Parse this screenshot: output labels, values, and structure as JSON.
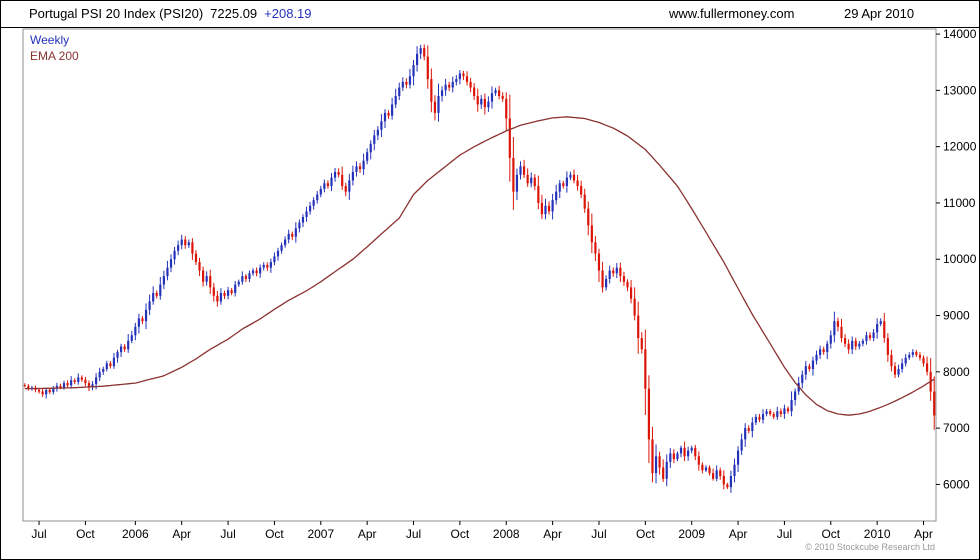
{
  "header": {
    "instrument": "Portugal PSI 20 Index (PSI20)",
    "price": "7225.09",
    "change": "+208.19",
    "website": "www.fullermoney.com",
    "date": "29 Apr 2010"
  },
  "legend": {
    "timeframe": "Weekly",
    "overlay": "EMA 200"
  },
  "footer": {
    "copyright": "© 2010 Stockcube Research Ltd"
  },
  "chart_data": {
    "type": "candlestick",
    "title": "Portugal PSI 20 Index (PSI20)",
    "timeframe": "Weekly",
    "overlay": "EMA 200",
    "last_price": 7225.09,
    "change": 208.19,
    "as_of_date": "29 Apr 2010",
    "grid": false,
    "legend_position": "top-left",
    "y_axis": {
      "side": "right",
      "ticks": [
        6000,
        7000,
        8000,
        9000,
        10000,
        11000,
        12000,
        13000,
        14000
      ],
      "range": [
        5350,
        14090
      ]
    },
    "x_axis": {
      "ticks": [
        {
          "label": "Jul",
          "week": 4
        },
        {
          "label": "Oct",
          "week": 17
        },
        {
          "label": "2006",
          "week": 31
        },
        {
          "label": "Apr",
          "week": 44
        },
        {
          "label": "Jul",
          "week": 57
        },
        {
          "label": "Oct",
          "week": 70
        },
        {
          "label": "2007",
          "week": 83
        },
        {
          "label": "Apr",
          "week": 96
        },
        {
          "label": "Jul",
          "week": 109
        },
        {
          "label": "Oct",
          "week": 122
        },
        {
          "label": "2008",
          "week": 135
        },
        {
          "label": "Apr",
          "week": 148
        },
        {
          "label": "Jul",
          "week": 161
        },
        {
          "label": "Oct",
          "week": 174
        },
        {
          "label": "2009",
          "week": 187
        },
        {
          "label": "Apr",
          "week": 200
        },
        {
          "label": "Jul",
          "week": 213
        },
        {
          "label": "Oct",
          "week": 226
        },
        {
          "label": "2010",
          "week": 239
        },
        {
          "label": "Apr",
          "week": 252
        }
      ]
    },
    "colors": {
      "up": "#2431b9",
      "down": "#dc1407",
      "ema": "#8a3331",
      "axis_text": "#000000",
      "frame": "#909090",
      "copyright": "#999999"
    },
    "series": {
      "weekly_closes": [
        7750,
        7700,
        7720,
        7680,
        7650,
        7600,
        7680,
        7640,
        7700,
        7750,
        7720,
        7800,
        7760,
        7850,
        7820,
        7900,
        7860,
        7800,
        7720,
        7780,
        7900,
        8000,
        8050,
        8150,
        8100,
        8250,
        8350,
        8450,
        8400,
        8550,
        8650,
        8800,
        8950,
        8900,
        9100,
        9250,
        9400,
        9350,
        9550,
        9700,
        9850,
        10000,
        10150,
        10250,
        10350,
        10250,
        10300,
        10100,
        9950,
        9800,
        9600,
        9700,
        9500,
        9350,
        9250,
        9400,
        9350,
        9450,
        9400,
        9550,
        9600,
        9700,
        9650,
        9750,
        9800,
        9750,
        9850,
        9900,
        9850,
        9950,
        10050,
        10150,
        10250,
        10350,
        10450,
        10400,
        10550,
        10650,
        10750,
        10850,
        10950,
        11050,
        11150,
        11250,
        11350,
        11300,
        11450,
        11550,
        11500,
        11300,
        11200,
        11400,
        11550,
        11650,
        11600,
        11750,
        11900,
        12050,
        12200,
        12300,
        12450,
        12600,
        12550,
        12750,
        12900,
        13050,
        13150,
        13100,
        13250,
        13450,
        13650,
        13750,
        13600,
        13200,
        12800,
        12600,
        12900,
        13000,
        13100,
        13050,
        13150,
        13200,
        13300,
        13250,
        13150,
        13050,
        12900,
        12750,
        12850,
        12700,
        12800,
        12950,
        13000,
        12900,
        12850,
        12500,
        11800,
        11200,
        11500,
        11650,
        11500,
        11350,
        11450,
        11300,
        11000,
        10800,
        10950,
        10850,
        11050,
        11200,
        11350,
        11300,
        11450,
        11500,
        11400,
        11300,
        11150,
        10900,
        10600,
        10300,
        10100,
        9800,
        9500,
        9650,
        9800,
        9750,
        9850,
        9700,
        9600,
        9500,
        9300,
        9000,
        8600,
        8400,
        7700,
        6800,
        6200,
        6500,
        6300,
        6100,
        6400,
        6550,
        6450,
        6550,
        6650,
        6500,
        6600,
        6650,
        6500,
        6350,
        6250,
        6300,
        6200,
        6100,
        6250,
        6150,
        6000,
        5950,
        6150,
        6350,
        6600,
        6800,
        7000,
        6950,
        7100,
        7200,
        7150,
        7250,
        7300,
        7250,
        7200,
        7300,
        7250,
        7350,
        7300,
        7500,
        7650,
        7800,
        7950,
        8100,
        8050,
        8200,
        8300,
        8400,
        8350,
        8500,
        8650,
        8900,
        8800,
        8600,
        8500,
        8400,
        8550,
        8450,
        8500,
        8550,
        8650,
        8600,
        8700,
        8850,
        8900,
        8600,
        8300,
        8100,
        7950,
        8050,
        8150,
        8250,
        8300,
        8350,
        8300,
        8250,
        8150,
        8000,
        7650,
        7225.09
      ],
      "ema200_anchors": [
        [
          0,
          7700
        ],
        [
          13,
          7715
        ],
        [
          22,
          7745
        ],
        [
          31,
          7800
        ],
        [
          39,
          7930
        ],
        [
          44,
          8080
        ],
        [
          48,
          8230
        ],
        [
          52,
          8400
        ],
        [
          57,
          8580
        ],
        [
          61,
          8760
        ],
        [
          66,
          8940
        ],
        [
          70,
          9110
        ],
        [
          74,
          9270
        ],
        [
          79,
          9440
        ],
        [
          83,
          9600
        ],
        [
          87,
          9780
        ],
        [
          92,
          10000
        ],
        [
          96,
          10220
        ],
        [
          100,
          10450
        ],
        [
          105,
          10730
        ],
        [
          109,
          11150
        ],
        [
          113,
          11400
        ],
        [
          118,
          11650
        ],
        [
          122,
          11850
        ],
        [
          126,
          12000
        ],
        [
          131,
          12160
        ],
        [
          135,
          12280
        ],
        [
          139,
          12380
        ],
        [
          144,
          12460
        ],
        [
          148,
          12510
        ],
        [
          152,
          12530
        ],
        [
          157,
          12500
        ],
        [
          161,
          12430
        ],
        [
          165,
          12330
        ],
        [
          169,
          12190
        ],
        [
          174,
          11950
        ],
        [
          178,
          11670
        ],
        [
          183,
          11300
        ],
        [
          187,
          10900
        ],
        [
          191,
          10480
        ],
        [
          196,
          9950
        ],
        [
          200,
          9480
        ],
        [
          204,
          9020
        ],
        [
          209,
          8500
        ],
        [
          213,
          8080
        ],
        [
          216,
          7810
        ],
        [
          219,
          7590
        ],
        [
          222,
          7420
        ],
        [
          225,
          7310
        ],
        [
          228,
          7250
        ],
        [
          231,
          7230
        ],
        [
          234,
          7250
        ],
        [
          237,
          7300
        ],
        [
          240,
          7370
        ],
        [
          243,
          7450
        ],
        [
          246,
          7540
        ],
        [
          249,
          7640
        ],
        [
          252,
          7750
        ],
        [
          255,
          7870
        ]
      ]
    }
  }
}
